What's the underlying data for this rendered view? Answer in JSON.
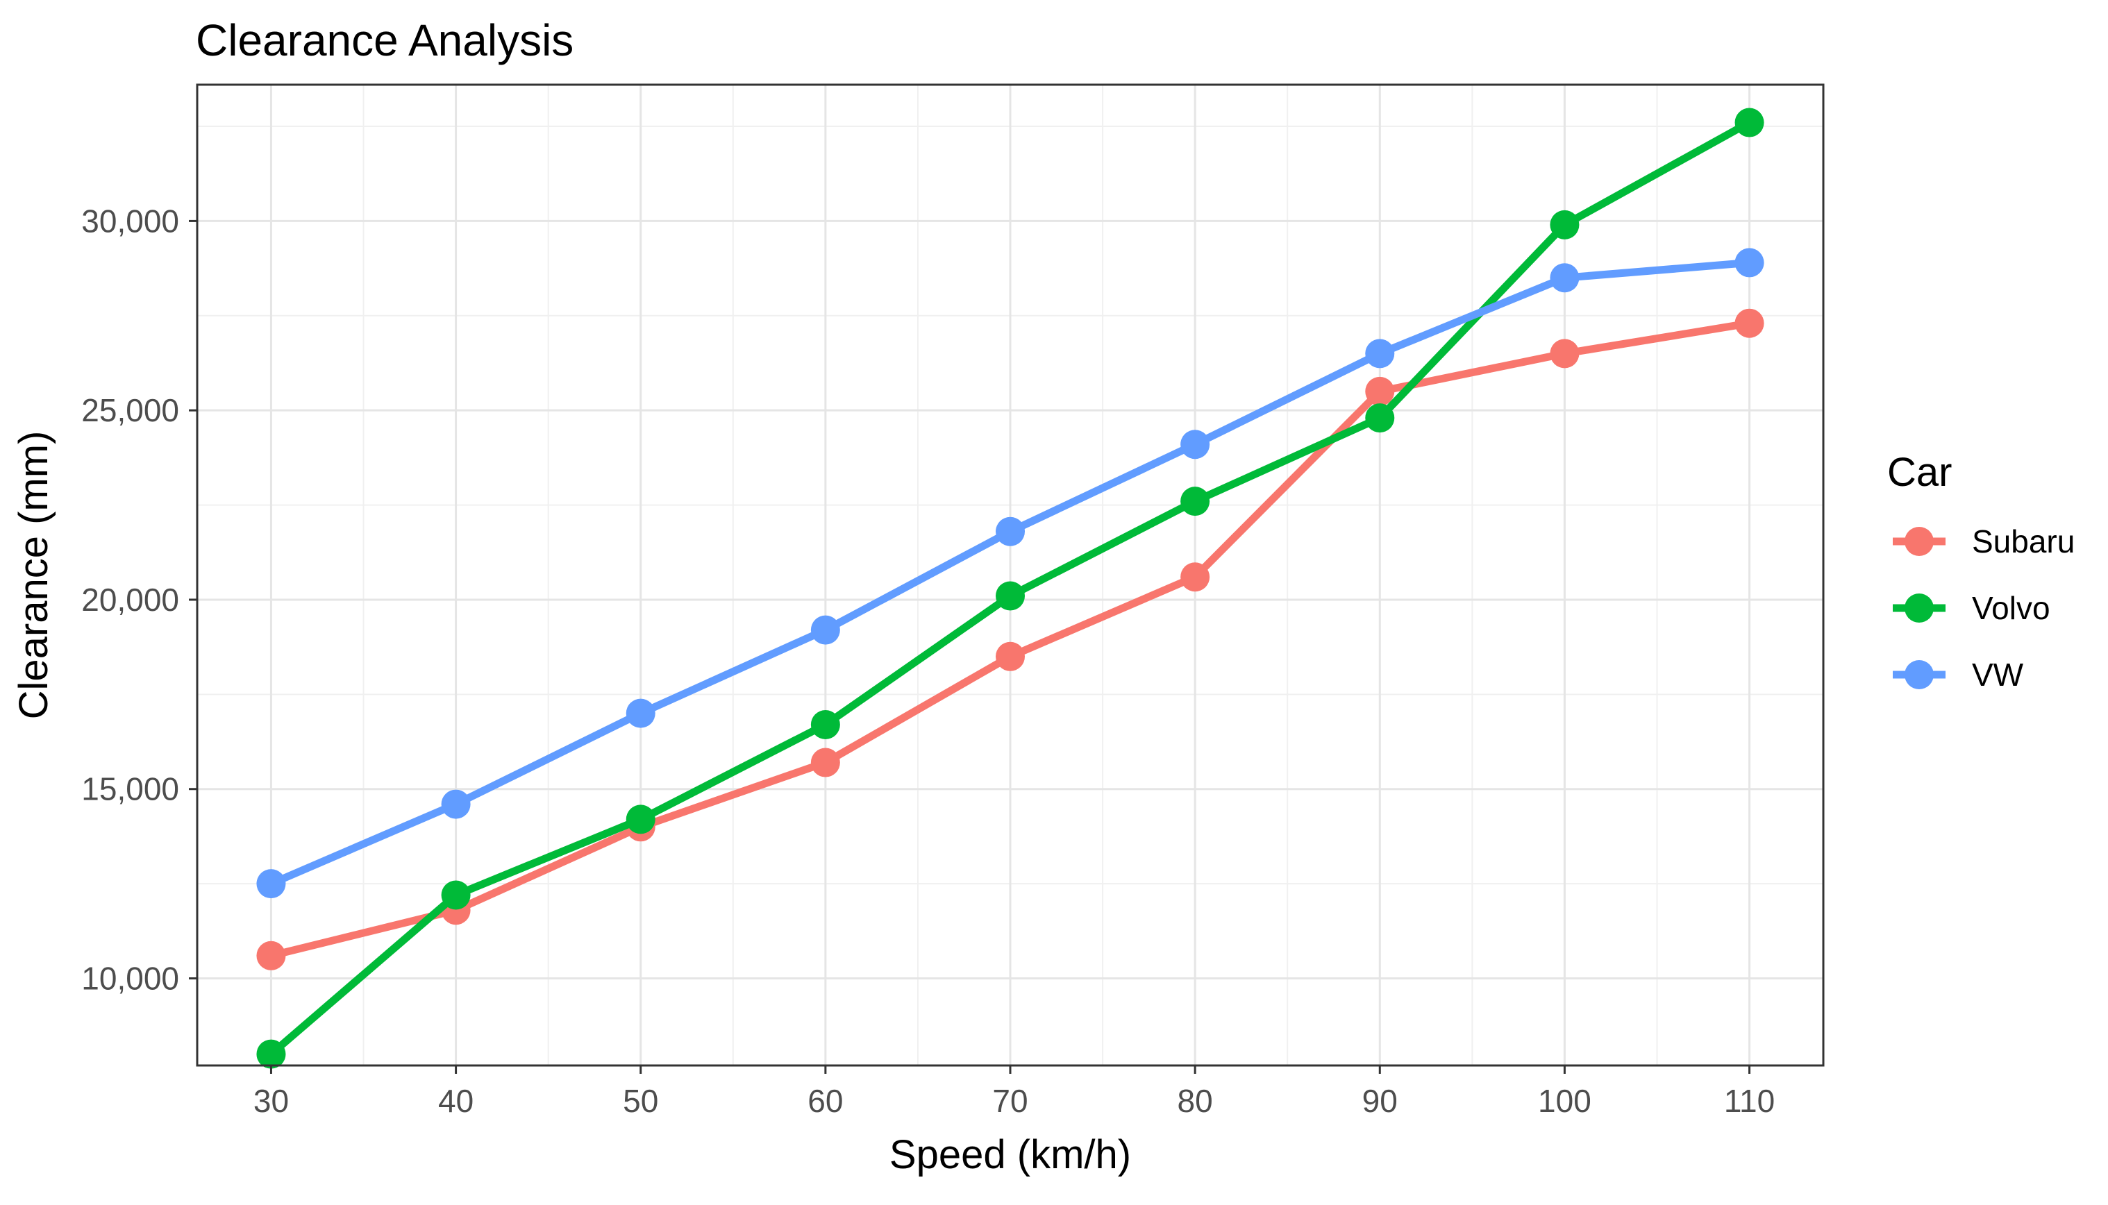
{
  "chart_data": {
    "type": "line",
    "title": "Clearance Analysis",
    "xlabel": "Speed (km/h)",
    "ylabel": "Clearance (mm)",
    "x": [
      30,
      40,
      50,
      60,
      70,
      80,
      90,
      100,
      110
    ],
    "x_ticks": [
      30,
      40,
      50,
      60,
      70,
      80,
      90,
      100,
      110
    ],
    "x_tick_labels": [
      "30",
      "40",
      "50",
      "60",
      "70",
      "80",
      "90",
      "100",
      "110"
    ],
    "xlim": [
      26,
      114
    ],
    "y_ticks": [
      10000,
      15000,
      20000,
      25000,
      30000
    ],
    "y_tick_labels": [
      "10,000",
      "15,000",
      "20,000",
      "25,000",
      "30,000"
    ],
    "ylim": [
      7700,
      33600
    ],
    "grid": true,
    "legend_title": "Car",
    "legend_position": "right",
    "series": [
      {
        "name": "Subaru",
        "color": "#F8766D",
        "values": [
          10600,
          11800,
          14000,
          15700,
          18500,
          20600,
          25500,
          26500,
          27300
        ]
      },
      {
        "name": "Volvo",
        "color": "#00BA38",
        "values": [
          8000,
          12200,
          14200,
          16700,
          20100,
          22600,
          24800,
          29900,
          32600
        ]
      },
      {
        "name": "VW",
        "color": "#619CFF",
        "values": [
          12500,
          14600,
          17000,
          19200,
          21800,
          24100,
          26500,
          28500,
          28900
        ]
      }
    ]
  }
}
